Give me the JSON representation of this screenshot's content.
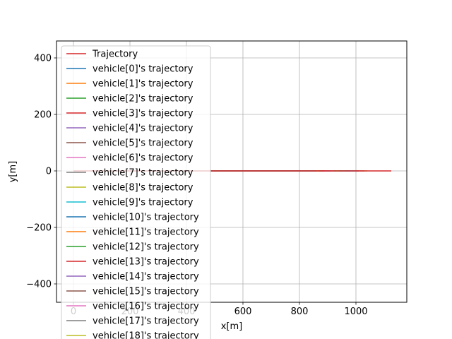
{
  "chart_data": {
    "type": "line",
    "title": "",
    "xlabel": "x[m]",
    "ylabel": "y[m]",
    "xlim": [
      -60,
      1180
    ],
    "ylim": [
      -465,
      460
    ],
    "xticks": [
      0,
      200,
      400,
      600,
      800,
      1000
    ],
    "yticks": [
      -400,
      -200,
      0,
      200,
      400
    ],
    "xtick_labels": [
      "0",
      "200",
      "400",
      "600",
      "800",
      "1000"
    ],
    "ytick_labels": [
      "−400",
      "−200",
      "0",
      "200",
      "400"
    ],
    "grid": true,
    "legend_position": "upper-left",
    "series": [
      {
        "name": "Trajectory",
        "color": "#d62728",
        "x": [
          0,
          1125
        ],
        "y": [
          0,
          0
        ]
      },
      {
        "name": "vehicle[0]'s trajectory",
        "color": "#1f77b4",
        "x": [
          0,
          860
        ],
        "y": [
          0,
          0
        ]
      },
      {
        "name": "vehicle[1]'s trajectory",
        "color": "#ff7f0e",
        "x": [
          0,
          870
        ],
        "y": [
          0,
          0
        ]
      },
      {
        "name": "vehicle[2]'s trajectory",
        "color": "#2ca02c",
        "x": [
          0,
          880
        ],
        "y": [
          0,
          0
        ]
      },
      {
        "name": "vehicle[3]'s trajectory",
        "color": "#d62728",
        "x": [
          0,
          890
        ],
        "y": [
          0,
          0
        ]
      },
      {
        "name": "vehicle[4]'s trajectory",
        "color": "#9467bd",
        "x": [
          0,
          900
        ],
        "y": [
          0,
          0
        ]
      },
      {
        "name": "vehicle[5]'s trajectory",
        "color": "#8c564b",
        "x": [
          0,
          910
        ],
        "y": [
          0,
          0
        ]
      },
      {
        "name": "vehicle[6]'s trajectory",
        "color": "#e377c2",
        "x": [
          0,
          920
        ],
        "y": [
          0,
          0
        ]
      },
      {
        "name": "vehicle[7]'s trajectory",
        "color": "#7f7f7f",
        "x": [
          0,
          930
        ],
        "y": [
          0,
          0
        ]
      },
      {
        "name": "vehicle[8]'s trajectory",
        "color": "#bcbd22",
        "x": [
          0,
          940
        ],
        "y": [
          0,
          0
        ]
      },
      {
        "name": "vehicle[9]'s trajectory",
        "color": "#17becf",
        "x": [
          0,
          1000
        ],
        "y": [
          0,
          0
        ]
      },
      {
        "name": "vehicle[10]'s trajectory",
        "color": "#1f77b4",
        "x": [
          0,
          950
        ],
        "y": [
          0,
          0
        ]
      },
      {
        "name": "vehicle[11]'s trajectory",
        "color": "#ff7f0e",
        "x": [
          0,
          960
        ],
        "y": [
          0,
          0
        ]
      },
      {
        "name": "vehicle[12]'s trajectory",
        "color": "#2ca02c",
        "x": [
          0,
          970
        ],
        "y": [
          0,
          0
        ]
      },
      {
        "name": "vehicle[13]'s trajectory",
        "color": "#d62728",
        "x": [
          0,
          980
        ],
        "y": [
          0,
          0
        ]
      },
      {
        "name": "vehicle[14]'s trajectory",
        "color": "#9467bd",
        "x": [
          0,
          990
        ],
        "y": [
          0,
          0
        ]
      },
      {
        "name": "vehicle[15]'s trajectory",
        "color": "#8c564b",
        "x": [
          0,
          1010
        ],
        "y": [
          0,
          0
        ]
      },
      {
        "name": "vehicle[16]'s trajectory",
        "color": "#e377c2",
        "x": [
          0,
          1020
        ],
        "y": [
          0,
          0
        ]
      },
      {
        "name": "vehicle[17]'s trajectory",
        "color": "#7f7f7f",
        "x": [
          0,
          1030
        ],
        "y": [
          0,
          0
        ]
      },
      {
        "name": "vehicle[18]'s trajectory",
        "color": "#bcbd22",
        "x": [
          0,
          1040
        ],
        "y": [
          0,
          0
        ]
      }
    ]
  }
}
